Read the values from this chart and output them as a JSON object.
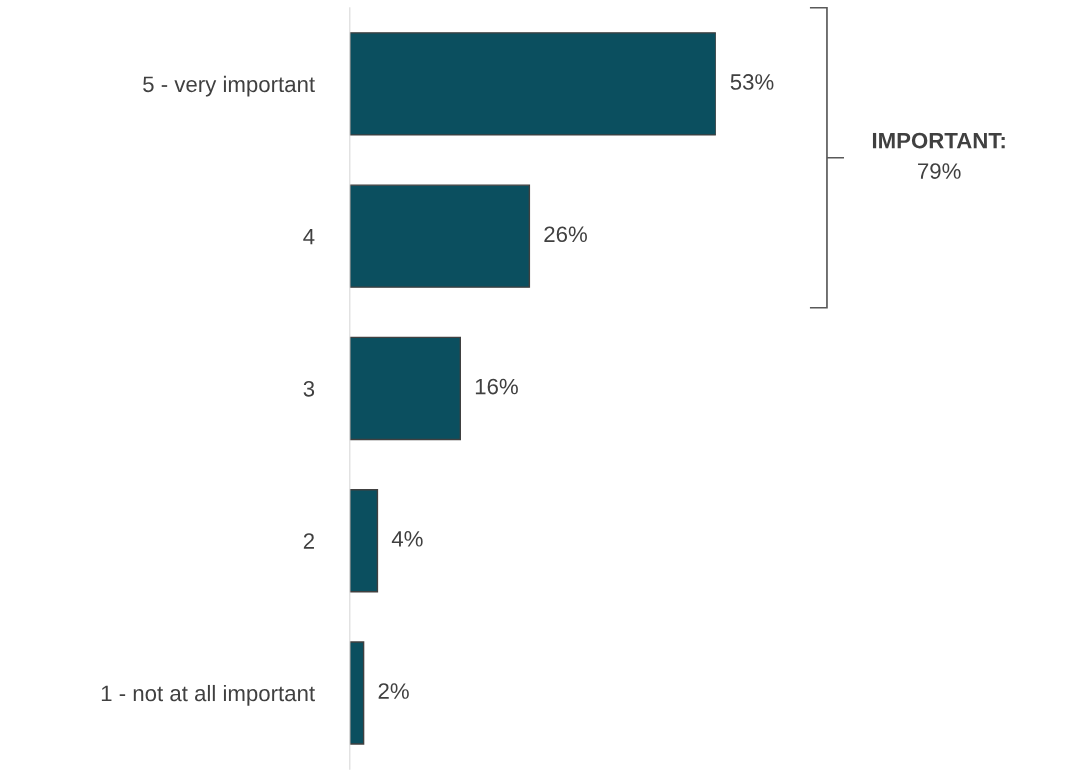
{
  "chart_data": {
    "type": "bar",
    "orientation": "horizontal",
    "categories": [
      "5 - very important",
      "4",
      "3",
      "2",
      "1 - not at all important"
    ],
    "values": [
      53,
      26,
      16,
      4,
      2
    ],
    "value_labels": [
      "53%",
      "26%",
      "16%",
      "4%",
      "2%"
    ],
    "color": "#0b4f5f",
    "annotations": [
      "IMPORTANT:",
      "79%"
    ],
    "grid": false,
    "legend": false
  }
}
